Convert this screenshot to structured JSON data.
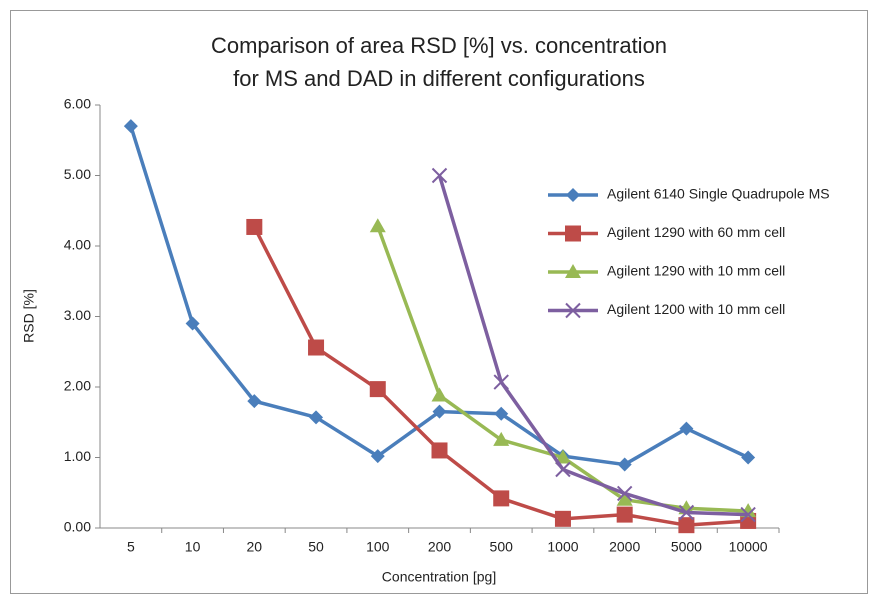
{
  "chart_data": {
    "type": "line",
    "title": [
      "Comparison of area RSD [%] vs. concentration",
      "for MS and DAD in different configurations"
    ],
    "x_label": "Concentration [pg]",
    "y_label": "RSD [%]",
    "categories": [
      "5",
      "10",
      "20",
      "50",
      "100",
      "200",
      "500",
      "1000",
      "2000",
      "5000",
      "10000"
    ],
    "ylim": [
      0,
      6
    ],
    "yticks": [
      {
        "value": 0,
        "label": "0.00"
      },
      {
        "value": 1,
        "label": "1.00"
      },
      {
        "value": 2,
        "label": "2.00"
      },
      {
        "value": 3,
        "label": "3.00"
      },
      {
        "value": 4,
        "label": "4.00"
      },
      {
        "value": 5,
        "label": "5.00"
      },
      {
        "value": 6,
        "label": "6.00"
      }
    ],
    "grid": false,
    "legend": "right",
    "series": [
      {
        "name": "Agilent 6140 Single Quadrupole MS",
        "color": "#4a7ebb",
        "marker": "diamond",
        "values": [
          5.7,
          2.9,
          1.8,
          1.57,
          1.02,
          1.65,
          1.62,
          1.02,
          0.9,
          1.41,
          1.0
        ]
      },
      {
        "name": "Agilent 1290 with 60 mm cell",
        "color": "#be4b48",
        "marker": "square",
        "values": [
          null,
          null,
          4.27,
          2.56,
          1.97,
          1.1,
          0.42,
          0.13,
          0.19,
          0.04,
          0.1
        ]
      },
      {
        "name": "Agilent 1290 with 10 mm cell",
        "color": "#98b954",
        "marker": "triangle",
        "values": [
          null,
          null,
          null,
          null,
          4.28,
          1.88,
          1.25,
          1.0,
          0.4,
          0.28,
          0.24
        ]
      },
      {
        "name": "Agilent 1200 with 10 mm cell",
        "color": "#7d5fa0",
        "marker": "x",
        "values": [
          null,
          null,
          null,
          null,
          null,
          5.0,
          2.07,
          0.83,
          0.49,
          0.22,
          0.19
        ]
      }
    ]
  }
}
